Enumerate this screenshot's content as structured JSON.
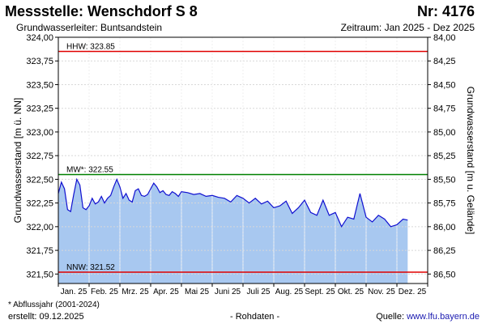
{
  "header": {
    "title": "Messstelle: Wenschdorf S 8",
    "nr": "Nr: 4176",
    "subtitle": "Grundwasserleiter: Buntsandstein",
    "period": "Zeitraum: Jan 2025 - Dez 2025"
  },
  "footer": {
    "footnote": "* Abflussjahr (2001-2024)",
    "created": "erstellt:  09.12.2025",
    "rohdaten": "- Rohdaten -",
    "source_label": "Quelle: ",
    "source_url": "www.lfu.bayern.de"
  },
  "colors": {
    "hhw": "#e00000",
    "mw": "#008000",
    "nnw": "#e00000",
    "line": "#1010d0",
    "fill": "#a8c8f0",
    "grid": "#d8d8d8"
  },
  "chart_data": {
    "type": "area",
    "ylabel": "Grundwasserstand [m ü. NN]",
    "ylabel_right": "Grundwasserstand [m u. Gelände]",
    "ylim": [
      321.4,
      324.0
    ],
    "ylim_right": [
      86.6,
      84.0
    ],
    "y_ticks": [
      "324,00",
      "323,75",
      "323,50",
      "323,25",
      "323,00",
      "322,75",
      "322,50",
      "322,25",
      "322,00",
      "321,75",
      "321,50"
    ],
    "y_ticks_right": [
      "84,00",
      "84,25",
      "84,50",
      "84,75",
      "85,00",
      "85,25",
      "85,50",
      "85,75",
      "86,00",
      "86,25",
      "86,50"
    ],
    "months": [
      "Jan. 25",
      "Feb. 25",
      "Mrz. 25",
      "Apr. 25",
      "Mai 25",
      "Juni 25",
      "Juli 25",
      "Aug. 25",
      "Sept. 25",
      "Okt. 25",
      "Nov. 25",
      "Dez. 25"
    ],
    "reference_lines": [
      {
        "label": "HHW: 323.85",
        "value": 323.85
      },
      {
        "label": "MW*: 322.55",
        "value": 322.55
      },
      {
        "label": "NNW: 321.52",
        "value": 321.52
      }
    ],
    "series": [
      {
        "x_month": [
          0.0,
          0.1,
          0.2,
          0.3,
          0.4,
          0.5,
          0.6,
          0.7,
          0.8,
          0.9,
          1.0,
          1.1,
          1.2,
          1.3,
          1.4,
          1.5,
          1.6,
          1.7,
          1.8,
          1.9,
          2.0,
          2.1,
          2.2,
          2.3,
          2.4,
          2.5,
          2.6,
          2.7,
          2.8,
          2.9,
          3.0,
          3.1,
          3.2,
          3.3,
          3.4,
          3.5,
          3.6,
          3.7,
          3.8,
          3.9,
          4.0,
          4.2,
          4.4,
          4.6,
          4.8,
          5.0,
          5.2,
          5.4,
          5.6,
          5.8,
          6.0,
          6.2,
          6.4,
          6.6,
          6.8,
          7.0,
          7.2,
          7.4,
          7.6,
          7.8,
          8.0,
          8.2,
          8.4,
          8.6,
          8.8,
          9.0,
          9.2,
          9.4,
          9.6,
          9.8,
          10.0,
          10.2,
          10.4,
          10.6,
          10.8,
          11.0,
          11.2,
          11.35
        ],
        "values": [
          322.35,
          322.47,
          322.4,
          322.18,
          322.16,
          322.34,
          322.5,
          322.44,
          322.2,
          322.18,
          322.22,
          322.3,
          322.24,
          322.26,
          322.32,
          322.25,
          322.3,
          322.33,
          322.42,
          322.5,
          322.42,
          322.3,
          322.35,
          322.28,
          322.26,
          322.38,
          322.4,
          322.33,
          322.32,
          322.34,
          322.4,
          322.46,
          322.42,
          322.36,
          322.38,
          322.34,
          322.33,
          322.37,
          322.35,
          322.32,
          322.37,
          322.36,
          322.34,
          322.35,
          322.32,
          322.33,
          322.31,
          322.3,
          322.26,
          322.33,
          322.3,
          322.25,
          322.3,
          322.24,
          322.27,
          322.2,
          322.22,
          322.27,
          322.14,
          322.2,
          322.28,
          322.15,
          322.12,
          322.28,
          322.12,
          322.15,
          322.0,
          322.1,
          322.08,
          322.35,
          322.1,
          322.05,
          322.12,
          322.08,
          322.0,
          322.02,
          322.08,
          322.07
        ]
      }
    ]
  }
}
